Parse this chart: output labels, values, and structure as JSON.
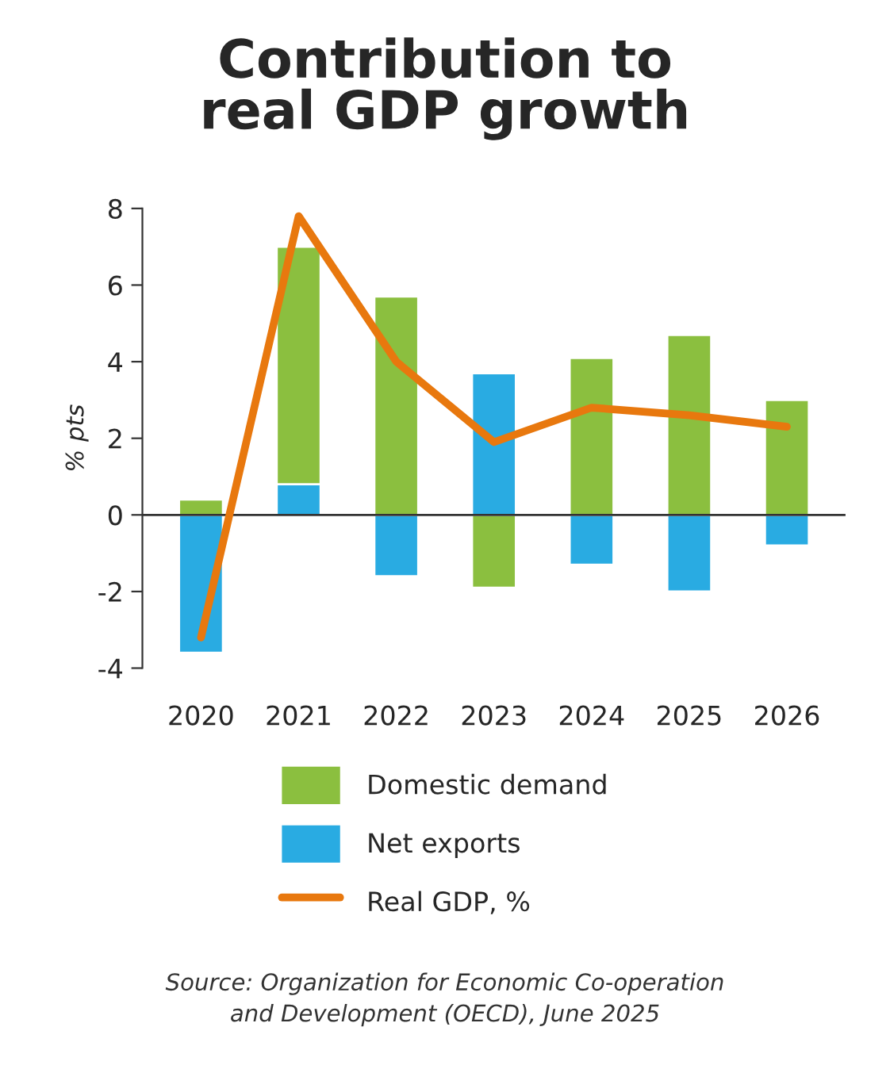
{
  "chart_data": {
    "type": "bar",
    "title": "Contribution to\nreal GDP growth",
    "ylabel": "% pts",
    "categories": [
      "2020",
      "2021",
      "2022",
      "2023",
      "2024",
      "2025",
      "2026"
    ],
    "stacked": true,
    "series": [
      {
        "name": "Net exports",
        "color": "#29abe2",
        "values": [
          -3.6,
          0.8,
          -1.6,
          3.7,
          -1.3,
          -2.0,
          -0.8
        ]
      },
      {
        "name": "Domestic demand",
        "color": "#8bbf3f",
        "values": [
          0.4,
          6.2,
          5.7,
          -1.9,
          4.1,
          4.7,
          3.0
        ]
      },
      {
        "name": "Real GDP, %",
        "type": "line",
        "color": "#e8780e",
        "values": [
          -3.2,
          7.8,
          4.0,
          1.9,
          2.8,
          2.6,
          2.3
        ]
      }
    ],
    "ylim": [
      -4,
      8
    ],
    "yticks": [
      -4,
      -2,
      0,
      2,
      4,
      6,
      8
    ],
    "grid": false,
    "ref_lines": [
      {
        "axis": "y",
        "value": 0,
        "color": "#333333"
      }
    ],
    "legend": "bottom",
    "annotations": [
      "Source: Organization for Economic Co-operation\nand Development (OECD), June 2025"
    ]
  }
}
